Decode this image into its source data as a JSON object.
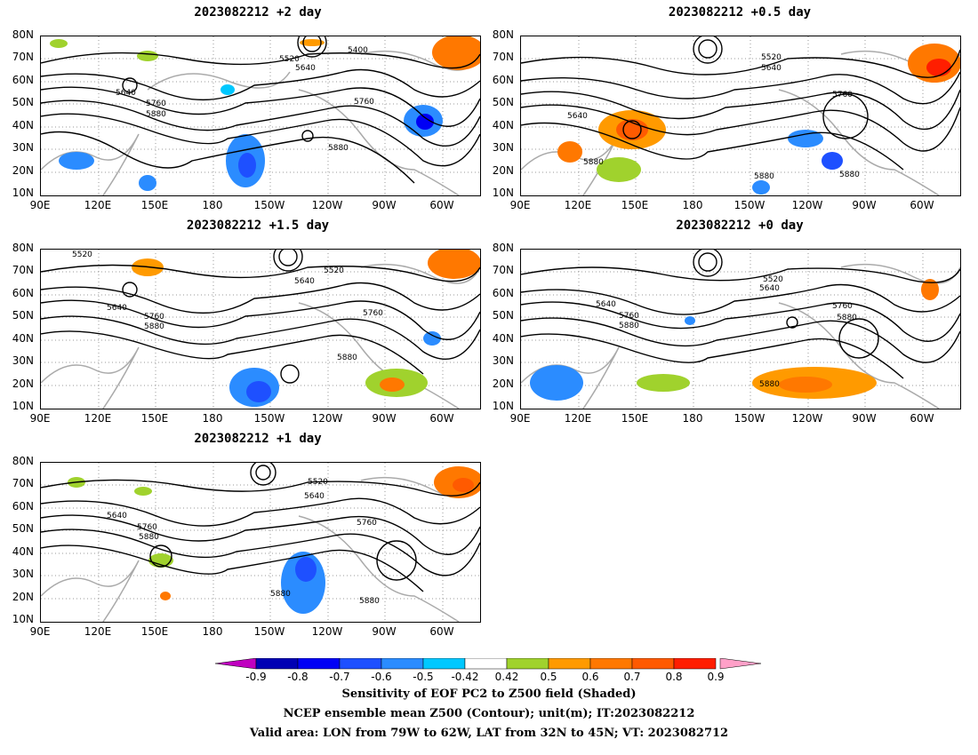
{
  "panels": [
    {
      "title": "2023082212 +2 day"
    },
    {
      "title": "2023082212 +0.5 day"
    },
    {
      "title": "2023082212 +1.5 day"
    },
    {
      "title": "2023082212 +0 day"
    },
    {
      "title": "2023082212 +1 day"
    }
  ],
  "axes": {
    "lat_labels": [
      "80N",
      "70N",
      "60N",
      "50N",
      "40N",
      "30N",
      "20N",
      "10N"
    ],
    "lon_labels": [
      "90E",
      "120E",
      "150E",
      "180",
      "150W",
      "120W",
      "90W",
      "60W"
    ]
  },
  "contour_labels": {
    "p0": [
      "5400",
      "5520",
      "5640",
      "5640",
      "5760",
      "5760",
      "5880",
      "5880"
    ],
    "p1": [
      "5520",
      "5640",
      "5760",
      "5640",
      "5880",
      "5880",
      "5880"
    ],
    "p2": [
      "5520",
      "5520",
      "5640",
      "5640",
      "5760",
      "5880",
      "5760",
      "5880"
    ],
    "p3": [
      "5520",
      "5640",
      "5640",
      "5760",
      "5880",
      "5760",
      "5880",
      "5880"
    ],
    "p4": [
      "5520",
      "5640",
      "5640",
      "5760",
      "5880",
      "5760",
      "5880",
      "5880"
    ]
  },
  "legend": {
    "ticks": [
      "-0.9",
      "-0.8",
      "-0.7",
      "-0.6",
      "-0.5",
      "-0.42",
      "0.42",
      "0.5",
      "0.6",
      "0.7",
      "0.8",
      "0.9"
    ],
    "colors": [
      "#0000b4",
      "#0000f5",
      "#1e50ff",
      "#2b8cff",
      "#00c8ff",
      "#ffffff",
      "#a0d22d",
      "#ff9a00",
      "#ff7800",
      "#ff5a00",
      "#ff1e00"
    ],
    "low_color": "#c000c0",
    "high_color": "#ffa0c8"
  },
  "captions": {
    "line1": "Sensitivity of EOF PC2 to Z500 field (Shaded)",
    "line2": "NCEP ensemble mean Z500 (Contour); unit(m); IT:2023082212",
    "line3": "Valid area: LON from 79W to 62W, LAT from 32N to 45N; VT: 2023082712"
  }
}
